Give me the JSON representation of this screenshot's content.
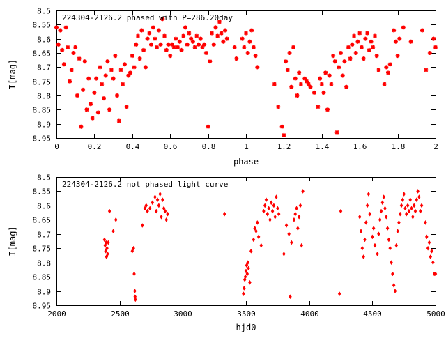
{
  "colors": {
    "points": "#ff0000",
    "axis": "#000000",
    "background": "#ffffff"
  },
  "chart_data": [
    {
      "id": "phased",
      "type": "scatter",
      "title": "224304-2126.2 phased with P=286.20day",
      "xlabel": "phase",
      "ylabel": "I[mag]",
      "xlim": [
        0,
        2
      ],
      "ylim": [
        8.5,
        8.95
      ],
      "y_inverted": true,
      "grid": false,
      "x_ticks": [
        0,
        0.2,
        0.4,
        0.6,
        0.8,
        1,
        1.2,
        1.4,
        1.6,
        1.8,
        2
      ],
      "x_tick_labels": [
        "0",
        "0.2",
        "0.4",
        "0.6",
        "0.8",
        "1",
        "1.2",
        "1.4",
        "1.6",
        "1.8",
        "2"
      ],
      "y_ticks": [
        8.5,
        8.55,
        8.6,
        8.65,
        8.7,
        8.75,
        8.8,
        8.85,
        8.9,
        8.95
      ],
      "y_tick_labels": [
        "8.5",
        "8.55",
        "8.6",
        "8.65",
        "8.7",
        "8.75",
        "8.8",
        "8.85",
        "8.9",
        "8.95"
      ],
      "marker": "star",
      "points": [
        [
          0.0,
          8.56
        ],
        [
          0.01,
          8.62
        ],
        [
          0.02,
          8.57
        ],
        [
          0.03,
          8.64
        ],
        [
          0.04,
          8.69
        ],
        [
          0.05,
          8.56
        ],
        [
          0.06,
          8.63
        ],
        [
          0.07,
          8.75
        ],
        [
          0.08,
          8.71
        ],
        [
          0.09,
          8.65
        ],
        [
          0.1,
          8.63
        ],
        [
          0.11,
          8.8
        ],
        [
          0.12,
          8.67
        ],
        [
          0.13,
          8.91
        ],
        [
          0.14,
          8.78
        ],
        [
          0.15,
          8.68
        ],
        [
          0.16,
          8.85
        ],
        [
          0.17,
          8.74
        ],
        [
          0.18,
          8.83
        ],
        [
          0.19,
          8.88
        ],
        [
          0.2,
          8.79
        ],
        [
          0.21,
          8.74
        ],
        [
          0.22,
          8.86
        ],
        [
          0.23,
          8.7
        ],
        [
          0.24,
          8.76
        ],
        [
          0.25,
          8.81
        ],
        [
          0.26,
          8.73
        ],
        [
          0.27,
          8.68
        ],
        [
          0.28,
          8.85
        ],
        [
          0.29,
          8.71
        ],
        [
          0.3,
          8.74
        ],
        [
          0.31,
          8.66
        ],
        [
          0.32,
          8.8
        ],
        [
          0.33,
          8.89
        ],
        [
          0.34,
          8.71
        ],
        [
          0.35,
          8.76
        ],
        [
          0.36,
          8.69
        ],
        [
          0.37,
          8.84
        ],
        [
          0.38,
          8.73
        ],
        [
          0.39,
          8.72
        ],
        [
          0.4,
          8.66
        ],
        [
          0.41,
          8.7
        ],
        [
          0.42,
          8.62
        ],
        [
          0.43,
          8.59
        ],
        [
          0.44,
          8.67
        ],
        [
          0.45,
          8.57
        ],
        [
          0.46,
          8.64
        ],
        [
          0.47,
          8.7
        ],
        [
          0.48,
          8.6
        ],
        [
          0.49,
          8.58
        ],
        [
          0.5,
          8.62
        ],
        [
          0.51,
          8.56
        ],
        [
          0.52,
          8.6
        ],
        [
          0.53,
          8.63
        ],
        [
          0.54,
          8.57
        ],
        [
          0.55,
          8.62
        ],
        [
          0.56,
          8.53
        ],
        [
          0.57,
          8.59
        ],
        [
          0.58,
          8.64
        ],
        [
          0.59,
          8.62
        ],
        [
          0.6,
          8.66
        ],
        [
          0.61,
          8.62
        ],
        [
          0.62,
          8.63
        ],
        [
          0.63,
          8.6
        ],
        [
          0.64,
          8.63
        ],
        [
          0.65,
          8.61
        ],
        [
          0.66,
          8.64
        ],
        [
          0.67,
          8.59
        ],
        [
          0.68,
          8.56
        ],
        [
          0.69,
          8.62
        ],
        [
          0.7,
          8.58
        ],
        [
          0.71,
          8.6
        ],
        [
          0.72,
          8.61
        ],
        [
          0.73,
          8.63
        ],
        [
          0.74,
          8.59
        ],
        [
          0.75,
          8.62
        ],
        [
          0.76,
          8.6
        ],
        [
          0.77,
          8.63
        ],
        [
          0.78,
          8.62
        ],
        [
          0.79,
          8.65
        ],
        [
          0.8,
          8.91
        ],
        [
          0.81,
          8.68
        ],
        [
          0.82,
          8.58
        ],
        [
          0.83,
          8.62
        ],
        [
          0.84,
          8.56
        ],
        [
          0.85,
          8.59
        ],
        [
          0.86,
          8.54
        ],
        [
          0.87,
          8.58
        ],
        [
          0.88,
          8.61
        ],
        [
          0.89,
          8.57
        ],
        [
          0.9,
          8.6
        ],
        [
          0.94,
          8.63
        ],
        [
          0.95,
          8.67
        ],
        [
          0.98,
          8.6
        ],
        [
          0.99,
          8.63
        ],
        [
          1.0,
          8.58
        ],
        [
          1.01,
          8.65
        ],
        [
          1.02,
          8.61
        ],
        [
          1.03,
          8.57
        ],
        [
          1.04,
          8.63
        ],
        [
          1.05,
          8.66
        ],
        [
          1.06,
          8.7
        ],
        [
          1.15,
          8.76
        ],
        [
          1.17,
          8.84
        ],
        [
          1.19,
          8.91
        ],
        [
          1.2,
          8.94
        ],
        [
          1.21,
          8.68
        ],
        [
          1.22,
          8.71
        ],
        [
          1.23,
          8.65
        ],
        [
          1.24,
          8.77
        ],
        [
          1.25,
          8.63
        ],
        [
          1.26,
          8.74
        ],
        [
          1.27,
          8.8
        ],
        [
          1.28,
          8.72
        ],
        [
          1.29,
          8.76
        ],
        [
          1.31,
          8.74
        ],
        [
          1.32,
          8.75
        ],
        [
          1.33,
          8.76
        ],
        [
          1.34,
          8.77
        ],
        [
          1.36,
          8.79
        ],
        [
          1.38,
          8.84
        ],
        [
          1.39,
          8.74
        ],
        [
          1.4,
          8.76
        ],
        [
          1.41,
          8.79
        ],
        [
          1.42,
          8.72
        ],
        [
          1.43,
          8.85
        ],
        [
          1.44,
          8.73
        ],
        [
          1.45,
          8.76
        ],
        [
          1.46,
          8.66
        ],
        [
          1.47,
          8.68
        ],
        [
          1.48,
          8.93
        ],
        [
          1.49,
          8.7
        ],
        [
          1.5,
          8.65
        ],
        [
          1.51,
          8.73
        ],
        [
          1.52,
          8.68
        ],
        [
          1.53,
          8.77
        ],
        [
          1.54,
          8.63
        ],
        [
          1.55,
          8.67
        ],
        [
          1.56,
          8.62
        ],
        [
          1.57,
          8.59
        ],
        [
          1.58,
          8.65
        ],
        [
          1.59,
          8.61
        ],
        [
          1.6,
          8.58
        ],
        [
          1.61,
          8.63
        ],
        [
          1.62,
          8.67
        ],
        [
          1.63,
          8.6
        ],
        [
          1.64,
          8.58
        ],
        [
          1.65,
          8.64
        ],
        [
          1.66,
          8.61
        ],
        [
          1.67,
          8.63
        ],
        [
          1.68,
          8.59
        ],
        [
          1.69,
          8.66
        ],
        [
          1.7,
          8.71
        ],
        [
          1.73,
          8.76
        ],
        [
          1.74,
          8.7
        ],
        [
          1.75,
          8.72
        ],
        [
          1.76,
          8.69
        ],
        [
          1.78,
          8.57
        ],
        [
          1.79,
          8.61
        ],
        [
          1.8,
          8.66
        ],
        [
          1.81,
          8.6
        ],
        [
          1.83,
          8.56
        ],
        [
          1.87,
          8.61
        ],
        [
          1.93,
          8.57
        ],
        [
          1.95,
          8.71
        ],
        [
          1.97,
          8.65
        ],
        [
          1.99,
          8.6
        ],
        [
          2.0,
          8.63
        ]
      ]
    },
    {
      "id": "unphased",
      "type": "scatter",
      "title": "224304-2126.2 not phased light curve",
      "xlabel": "hjd0",
      "ylabel": "I[mag]",
      "xlim": [
        2000,
        5000
      ],
      "ylim": [
        8.5,
        8.95
      ],
      "y_inverted": true,
      "grid": false,
      "x_ticks": [
        2000,
        2500,
        3000,
        3500,
        4000,
        4500,
        5000
      ],
      "x_tick_labels": [
        "2000",
        "2500",
        "3000",
        "3500",
        "4000",
        "4500",
        "5000"
      ],
      "y_ticks": [
        8.5,
        8.55,
        8.6,
        8.65,
        8.7,
        8.75,
        8.8,
        8.85,
        8.9,
        8.95
      ],
      "y_tick_labels": [
        "8.5",
        "8.55",
        "8.6",
        "8.65",
        "8.7",
        "8.75",
        "8.8",
        "8.85",
        "8.9",
        "8.95"
      ],
      "marker": "diamond",
      "points": [
        [
          2380,
          8.72
        ],
        [
          2385,
          8.74
        ],
        [
          2390,
          8.76
        ],
        [
          2393,
          8.73
        ],
        [
          2396,
          8.78
        ],
        [
          2400,
          8.75
        ],
        [
          2405,
          8.77
        ],
        [
          2410,
          8.73
        ],
        [
          2420,
          8.62
        ],
        [
          2450,
          8.69
        ],
        [
          2470,
          8.65
        ],
        [
          2600,
          8.76
        ],
        [
          2610,
          8.75
        ],
        [
          2615,
          8.84
        ],
        [
          2620,
          8.9
        ],
        [
          2622,
          8.92
        ],
        [
          2625,
          8.93
        ],
        [
          2680,
          8.67
        ],
        [
          2700,
          8.61
        ],
        [
          2710,
          8.6
        ],
        [
          2720,
          8.62
        ],
        [
          2740,
          8.61
        ],
        [
          2760,
          8.59
        ],
        [
          2780,
          8.57
        ],
        [
          2790,
          8.62
        ],
        [
          2800,
          8.58
        ],
        [
          2810,
          8.6
        ],
        [
          2820,
          8.56
        ],
        [
          2830,
          8.64
        ],
        [
          2840,
          8.58
        ],
        [
          2850,
          8.61
        ],
        [
          2860,
          8.62
        ],
        [
          2870,
          8.65
        ],
        [
          2880,
          8.63
        ],
        [
          3330,
          8.63
        ],
        [
          3480,
          8.91
        ],
        [
          3485,
          8.89
        ],
        [
          3490,
          8.86
        ],
        [
          3495,
          8.85
        ],
        [
          3500,
          8.83
        ],
        [
          3505,
          8.81
        ],
        [
          3510,
          8.84
        ],
        [
          3515,
          8.8
        ],
        [
          3520,
          8.82
        ],
        [
          3530,
          8.87
        ],
        [
          3540,
          8.76
        ],
        [
          3560,
          8.72
        ],
        [
          3570,
          8.68
        ],
        [
          3580,
          8.69
        ],
        [
          3590,
          8.66
        ],
        [
          3600,
          8.71
        ],
        [
          3620,
          8.74
        ],
        [
          3640,
          8.62
        ],
        [
          3650,
          8.6
        ],
        [
          3660,
          8.58
        ],
        [
          3670,
          8.63
        ],
        [
          3680,
          8.61
        ],
        [
          3690,
          8.65
        ],
        [
          3700,
          8.59
        ],
        [
          3710,
          8.62
        ],
        [
          3720,
          8.6
        ],
        [
          3730,
          8.64
        ],
        [
          3740,
          8.57
        ],
        [
          3750,
          8.61
        ],
        [
          3760,
          8.63
        ],
        [
          3800,
          8.77
        ],
        [
          3820,
          8.67
        ],
        [
          3840,
          8.7
        ],
        [
          3850,
          8.92
        ],
        [
          3860,
          8.73
        ],
        [
          3880,
          8.65
        ],
        [
          3890,
          8.63
        ],
        [
          3900,
          8.61
        ],
        [
          3910,
          8.68
        ],
        [
          3920,
          8.64
        ],
        [
          3930,
          8.6
        ],
        [
          3940,
          8.74
        ],
        [
          3950,
          8.55
        ],
        [
          4240,
          8.91
        ],
        [
          4250,
          8.62
        ],
        [
          4400,
          8.64
        ],
        [
          4410,
          8.69
        ],
        [
          4420,
          8.75
        ],
        [
          4430,
          8.78
        ],
        [
          4440,
          8.72
        ],
        [
          4450,
          8.66
        ],
        [
          4460,
          8.6
        ],
        [
          4470,
          8.56
        ],
        [
          4480,
          8.63
        ],
        [
          4500,
          8.71
        ],
        [
          4510,
          8.68
        ],
        [
          4520,
          8.74
        ],
        [
          4540,
          8.77
        ],
        [
          4550,
          8.7
        ],
        [
          4560,
          8.65
        ],
        [
          4570,
          8.62
        ],
        [
          4580,
          8.59
        ],
        [
          4590,
          8.57
        ],
        [
          4600,
          8.61
        ],
        [
          4610,
          8.64
        ],
        [
          4620,
          8.68
        ],
        [
          4630,
          8.72
        ],
        [
          4640,
          8.75
        ],
        [
          4650,
          8.8
        ],
        [
          4660,
          8.84
        ],
        [
          4670,
          8.88
        ],
        [
          4680,
          8.9
        ],
        [
          4690,
          8.74
        ],
        [
          4700,
          8.69
        ],
        [
          4710,
          8.66
        ],
        [
          4720,
          8.63
        ],
        [
          4730,
          8.6
        ],
        [
          4740,
          8.58
        ],
        [
          4750,
          8.56
        ],
        [
          4760,
          8.61
        ],
        [
          4770,
          8.63
        ],
        [
          4780,
          8.6
        ],
        [
          4790,
          8.62
        ],
        [
          4800,
          8.58
        ],
        [
          4810,
          8.61
        ],
        [
          4820,
          8.64
        ],
        [
          4830,
          8.6
        ],
        [
          4840,
          8.62
        ],
        [
          4850,
          8.58
        ],
        [
          4860,
          8.55
        ],
        [
          4870,
          8.57
        ],
        [
          4880,
          8.62
        ],
        [
          4890,
          8.6
        ],
        [
          4920,
          8.66
        ],
        [
          4930,
          8.71
        ],
        [
          4940,
          8.75
        ],
        [
          4950,
          8.73
        ],
        [
          4960,
          8.78
        ],
        [
          4970,
          8.76
        ],
        [
          4980,
          8.8
        ],
        [
          4990,
          8.84
        ],
        [
          5000,
          8.84
        ]
      ]
    }
  ]
}
